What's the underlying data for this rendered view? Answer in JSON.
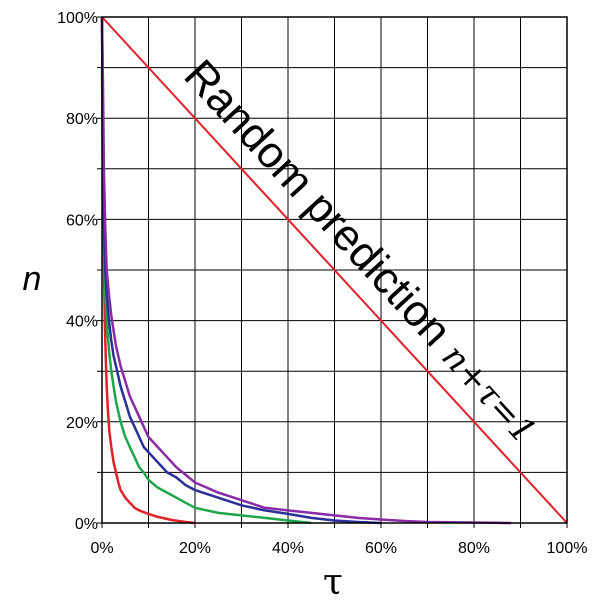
{
  "chart_data": {
    "type": "line",
    "title": "",
    "xlabel": "τ",
    "ylabel": "n",
    "xlim": [
      0,
      100
    ],
    "ylim": [
      0,
      100
    ],
    "grid": true,
    "x_ticks": [
      0,
      10,
      20,
      30,
      40,
      50,
      60,
      70,
      80,
      90,
      100
    ],
    "y_ticks": [
      0,
      10,
      20,
      30,
      40,
      50,
      60,
      70,
      80,
      90,
      100
    ],
    "x_tick_labels": [
      "0%",
      "20%",
      "40%",
      "60%",
      "80%",
      "100%"
    ],
    "y_tick_labels": [
      "0%",
      "20%",
      "40%",
      "60%",
      "80%",
      "100%"
    ],
    "annotation": {
      "main": "Random prediction ",
      "math": "n+τ=1"
    },
    "series": [
      {
        "color": "#e0202a",
        "x": [
          0,
          0.2,
          0.4,
          0.6,
          0.8,
          1,
          1.3,
          1.6,
          2,
          2.5,
          3,
          3.5,
          4,
          5,
          6,
          7,
          8,
          10,
          12,
          15,
          18,
          20
        ],
        "y": [
          100,
          72,
          52,
          40,
          33,
          27,
          22,
          18,
          15,
          12,
          10,
          8,
          6.5,
          5,
          4,
          3,
          2.5,
          1.8,
          1.2,
          0.6,
          0.2,
          0
        ]
      },
      {
        "color": "#1fa64a",
        "x": [
          0,
          0.2,
          0.4,
          0.7,
          1,
          1.5,
          2,
          2.5,
          3,
          4,
          5,
          6,
          7,
          8,
          9,
          10,
          12,
          14,
          16,
          18,
          20,
          25,
          30,
          35,
          40,
          45
        ],
        "y": [
          90,
          68,
          55,
          45,
          40,
          34,
          30,
          27,
          24,
          20,
          17,
          15,
          13,
          11,
          10,
          8.5,
          7,
          6,
          5,
          4,
          3,
          2,
          1.5,
          1,
          0.5,
          0
        ]
      },
      {
        "color": "#2a2f9a",
        "x": [
          0,
          0.2,
          0.4,
          0.7,
          1,
          1.5,
          2,
          2.5,
          3,
          4,
          5,
          6,
          7,
          8,
          9,
          10,
          12,
          14,
          16,
          18,
          20,
          25,
          30,
          35,
          40,
          45,
          50,
          55,
          60
        ],
        "y": [
          100,
          78,
          60,
          50,
          45,
          40,
          36,
          33,
          31,
          27,
          24,
          21,
          19,
          17,
          15,
          14,
          12,
          10,
          9,
          7.5,
          6.5,
          5,
          3.5,
          2.5,
          1.8,
          1,
          0.5,
          0.2,
          0
        ]
      },
      {
        "color": "#8a2aa6",
        "x": [
          0,
          0.2,
          0.4,
          0.7,
          1,
          1.5,
          2,
          2.5,
          3,
          4,
          5,
          6,
          7,
          8,
          9,
          10,
          12,
          14,
          16,
          18,
          20,
          25,
          30,
          35,
          40,
          45,
          50,
          55,
          60,
          65,
          70,
          80,
          88
        ],
        "y": [
          100,
          88,
          70,
          58,
          50,
          45,
          41,
          38,
          35,
          31,
          28,
          25,
          23,
          21,
          19,
          17,
          15,
          13,
          11,
          9.5,
          8,
          6,
          4.5,
          3,
          2.5,
          2,
          1.5,
          1,
          0.7,
          0.4,
          0.2,
          0.1,
          0
        ]
      },
      {
        "color": "#e0202a",
        "x": [
          0,
          100
        ],
        "y": [
          100,
          0
        ]
      }
    ]
  }
}
